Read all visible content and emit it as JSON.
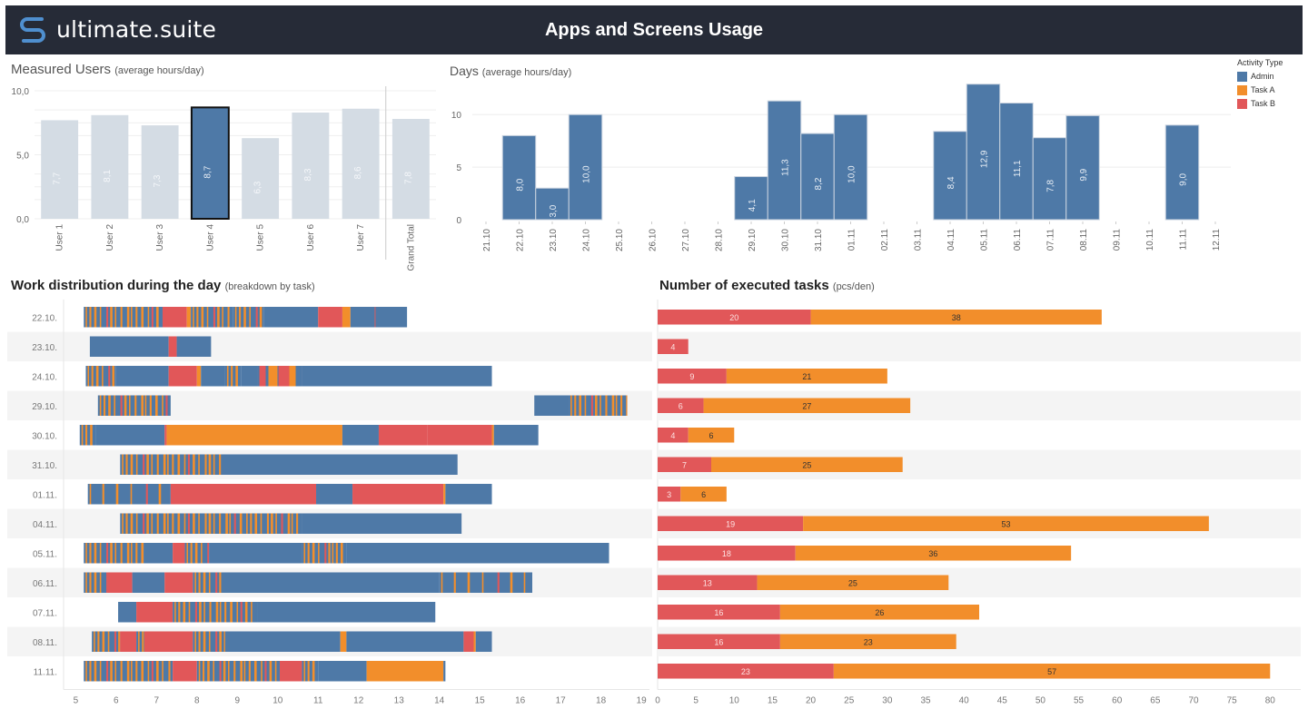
{
  "header": {
    "brand": "ultimate.suite",
    "title": "Apps and Screens Usage",
    "logo_icon": "s-logo-icon"
  },
  "colors": {
    "admin": "#4e79a7",
    "task_a": "#f28e2b",
    "task_b": "#e15759",
    "muted_bar": "#d4dce4",
    "header_bg": "#262b37",
    "row_alt": "#f4f4f4"
  },
  "legend": {
    "title": "Activity Type",
    "items": [
      {
        "label": "Admin",
        "key": "admin"
      },
      {
        "label": "Task A",
        "key": "task_a"
      },
      {
        "label": "Task B",
        "key": "task_b"
      }
    ]
  },
  "panels": {
    "users": {
      "title": "Measured Users",
      "subtitle": "(average hours/day)"
    },
    "days": {
      "title": "Days",
      "subtitle": "(average hours/day)"
    },
    "work": {
      "title": "Work distribution during the day",
      "subtitle": "(breakdown by task)"
    },
    "tasks": {
      "title": "Number of executed tasks",
      "subtitle": "(pcs/den)"
    }
  },
  "chart_data": [
    {
      "id": "users",
      "type": "bar",
      "title": "Measured Users (average hours/day)",
      "categories": [
        "User 1",
        "User 2",
        "User 3",
        "User 4",
        "User 5",
        "User 6",
        "User 7",
        "Grand Total"
      ],
      "values": [
        7.7,
        8.1,
        7.3,
        8.7,
        6.3,
        8.3,
        8.6,
        7.8
      ],
      "labels": [
        "7,7",
        "8,1",
        "7,3",
        "8,7",
        "6,3",
        "8,3",
        "8,6",
        "7,8"
      ],
      "highlighted": "User 4",
      "yticks": [
        "0,0",
        "5,0",
        "10,0"
      ],
      "ylim": [
        0,
        10
      ]
    },
    {
      "id": "days",
      "type": "bar",
      "title": "Days (average hours/day)",
      "categories": [
        "21.10",
        "22.10",
        "23.10",
        "24.10",
        "25.10",
        "26.10",
        "27.10",
        "28.10",
        "29.10",
        "30.10",
        "31.10",
        "01.11",
        "02.11",
        "03.11",
        "04.11",
        "05.11",
        "06.11",
        "07.11",
        "08.11",
        "09.11",
        "10.11",
        "11.11",
        "12.11"
      ],
      "values": [
        null,
        8.0,
        3.0,
        10.0,
        null,
        null,
        null,
        null,
        4.1,
        11.3,
        8.2,
        10.0,
        null,
        null,
        8.4,
        12.9,
        11.1,
        7.8,
        9.9,
        null,
        null,
        9.0,
        null
      ],
      "labels": [
        null,
        "8,0",
        "3,0",
        "10,0",
        null,
        null,
        null,
        null,
        "4,1",
        "11,3",
        "8,2",
        "10,0",
        null,
        null,
        "8,4",
        "12,9",
        "11,1",
        "7,8",
        "9,9",
        null,
        null,
        "9,0",
        null
      ],
      "yticks": [
        "0",
        "5",
        "10"
      ],
      "ylim": [
        0,
        13
      ]
    },
    {
      "id": "work",
      "type": "bar",
      "title": "Work distribution during the day (breakdown by task)",
      "xlabel": "",
      "xticks": [
        "5",
        "6",
        "7",
        "8",
        "9",
        "10",
        "11",
        "12",
        "13",
        "14",
        "15",
        "16",
        "17",
        "18",
        "19"
      ],
      "xlim": [
        4.7,
        19.2
      ],
      "rows": [
        {
          "day": "22.10.",
          "segments": [
            [
              5.2,
              7.15,
              "mixA"
            ],
            [
              7.15,
              7.75,
              "task_b"
            ],
            [
              7.75,
              7.85,
              "task_a"
            ],
            [
              7.85,
              8.9,
              "mixA"
            ],
            [
              8.9,
              9.65,
              "mixA2"
            ],
            [
              9.65,
              11.0,
              "admin"
            ],
            [
              11.0,
              11.6,
              "task_b"
            ],
            [
              11.6,
              11.8,
              "task_a"
            ],
            [
              11.8,
              12.4,
              "admin"
            ],
            [
              12.4,
              12.42,
              "task_b"
            ],
            [
              12.42,
              13.2,
              "admin"
            ]
          ]
        },
        {
          "day": "23.10.",
          "segments": [
            [
              5.35,
              7.3,
              "admin"
            ],
            [
              7.3,
              7.5,
              "task_b"
            ],
            [
              7.5,
              8.35,
              "admin"
            ]
          ]
        },
        {
          "day": "24.10.",
          "segments": [
            [
              5.25,
              6.0,
              "mixA"
            ],
            [
              6.0,
              7.3,
              "admin"
            ],
            [
              7.3,
              8.0,
              "task_b"
            ],
            [
              8.0,
              8.1,
              "task_a"
            ],
            [
              8.1,
              8.7,
              "admin"
            ],
            [
              8.7,
              9.1,
              "mixA"
            ],
            [
              9.1,
              9.5,
              "admin"
            ],
            [
              9.5,
              10.6,
              "mixB"
            ],
            [
              10.6,
              15.3,
              "admin"
            ]
          ]
        },
        {
          "day": "29.10.",
          "segments": [
            [
              5.55,
              7.35,
              "mixA"
            ],
            [
              16.35,
              17.2,
              "admin"
            ],
            [
              17.2,
              18.65,
              "mixA"
            ]
          ]
        },
        {
          "day": "30.10.",
          "segments": [
            [
              5.1,
              5.5,
              "mixA"
            ],
            [
              5.5,
              7.2,
              "admin"
            ],
            [
              7.2,
              7.25,
              "task_b"
            ],
            [
              7.25,
              11.6,
              "task_a"
            ],
            [
              11.6,
              12.5,
              "admin"
            ],
            [
              12.5,
              13.7,
              "task_b"
            ],
            [
              13.7,
              15.3,
              "task_b"
            ],
            [
              15.3,
              15.35,
              "task_a"
            ],
            [
              15.35,
              16.45,
              "admin"
            ]
          ]
        },
        {
          "day": "31.10.",
          "segments": [
            [
              6.1,
              8.6,
              "mixA"
            ],
            [
              8.6,
              14.45,
              "admin"
            ]
          ]
        },
        {
          "day": "01.11.",
          "segments": [
            [
              5.3,
              7.35,
              "mixLight"
            ],
            [
              7.35,
              10.95,
              "task_b"
            ],
            [
              10.95,
              11.85,
              "admin"
            ],
            [
              11.85,
              14.1,
              "task_b"
            ],
            [
              14.1,
              14.15,
              "task_a"
            ],
            [
              14.15,
              15.3,
              "admin"
            ]
          ]
        },
        {
          "day": "04.11.",
          "segments": [
            [
              6.1,
              10.6,
              "mixA"
            ],
            [
              10.6,
              14.55,
              "admin"
            ]
          ]
        },
        {
          "day": "05.11.",
          "segments": [
            [
              5.2,
              6.7,
              "mixA"
            ],
            [
              6.7,
              7.4,
              "admin"
            ],
            [
              7.4,
              7.7,
              "task_b"
            ],
            [
              7.7,
              8.3,
              "mixA"
            ],
            [
              8.3,
              10.6,
              "admin"
            ],
            [
              10.6,
              11.3,
              "mixA"
            ],
            [
              11.3,
              11.7,
              "mixA"
            ],
            [
              11.7,
              18.2,
              "admin"
            ]
          ]
        },
        {
          "day": "06.11.",
          "segments": [
            [
              5.2,
              5.8,
              "mixA"
            ],
            [
              5.8,
              6.4,
              "task_b"
            ],
            [
              6.4,
              7.2,
              "admin"
            ],
            [
              7.2,
              7.9,
              "task_b"
            ],
            [
              7.9,
              8.6,
              "mixA"
            ],
            [
              8.6,
              14.0,
              "admin"
            ],
            [
              14.0,
              16.3,
              "mixLight"
            ]
          ]
        },
        {
          "day": "07.11.",
          "segments": [
            [
              6.05,
              6.5,
              "admin"
            ],
            [
              6.5,
              7.4,
              "task_b"
            ],
            [
              7.4,
              9.5,
              "mixA"
            ],
            [
              9.5,
              13.9,
              "admin"
            ]
          ]
        },
        {
          "day": "08.11.",
          "segments": [
            [
              5.4,
              6.1,
              "mixA"
            ],
            [
              6.1,
              6.5,
              "task_b"
            ],
            [
              6.5,
              6.7,
              "mixA"
            ],
            [
              6.7,
              7.9,
              "task_b"
            ],
            [
              7.9,
              8.7,
              "mixA"
            ],
            [
              8.7,
              11.55,
              "admin"
            ],
            [
              11.55,
              11.7,
              "task_a"
            ],
            [
              11.7,
              14.6,
              "admin"
            ],
            [
              14.6,
              14.85,
              "task_b"
            ],
            [
              14.85,
              14.9,
              "task_a"
            ],
            [
              14.9,
              15.3,
              "admin"
            ]
          ]
        },
        {
          "day": "11.11.",
          "segments": [
            [
              5.2,
              7.4,
              "mixA"
            ],
            [
              7.4,
              8.0,
              "task_b"
            ],
            [
              8.0,
              10.05,
              "mixA"
            ],
            [
              10.05,
              10.6,
              "task_b"
            ],
            [
              10.6,
              11.0,
              "mixA"
            ],
            [
              11.0,
              12.2,
              "admin"
            ],
            [
              12.2,
              14.1,
              "task_a"
            ],
            [
              14.1,
              14.15,
              "admin"
            ]
          ]
        }
      ]
    },
    {
      "id": "tasks",
      "type": "bar",
      "stacked": true,
      "orientation": "horizontal",
      "title": "Number of executed tasks (pcs/den)",
      "categories": [
        "22.10.",
        "23.10.",
        "24.10.",
        "29.10.",
        "30.10.",
        "31.10.",
        "01.11.",
        "04.11.",
        "05.11.",
        "06.11.",
        "07.11.",
        "08.11.",
        "11.11."
      ],
      "series": [
        {
          "name": "Task B",
          "key": "task_b",
          "values": [
            20,
            4,
            9,
            6,
            4,
            7,
            3,
            19,
            18,
            13,
            16,
            16,
            23
          ]
        },
        {
          "name": "Task A",
          "key": "task_a",
          "values": [
            38,
            null,
            21,
            27,
            6,
            25,
            6,
            53,
            36,
            25,
            26,
            23,
            57
          ]
        }
      ],
      "xticks": [
        "0",
        "5",
        "10",
        "15",
        "20",
        "25",
        "30",
        "35",
        "40",
        "45",
        "50",
        "55",
        "60",
        "65",
        "70",
        "75",
        "80"
      ],
      "xlim": [
        0,
        84
      ]
    }
  ]
}
